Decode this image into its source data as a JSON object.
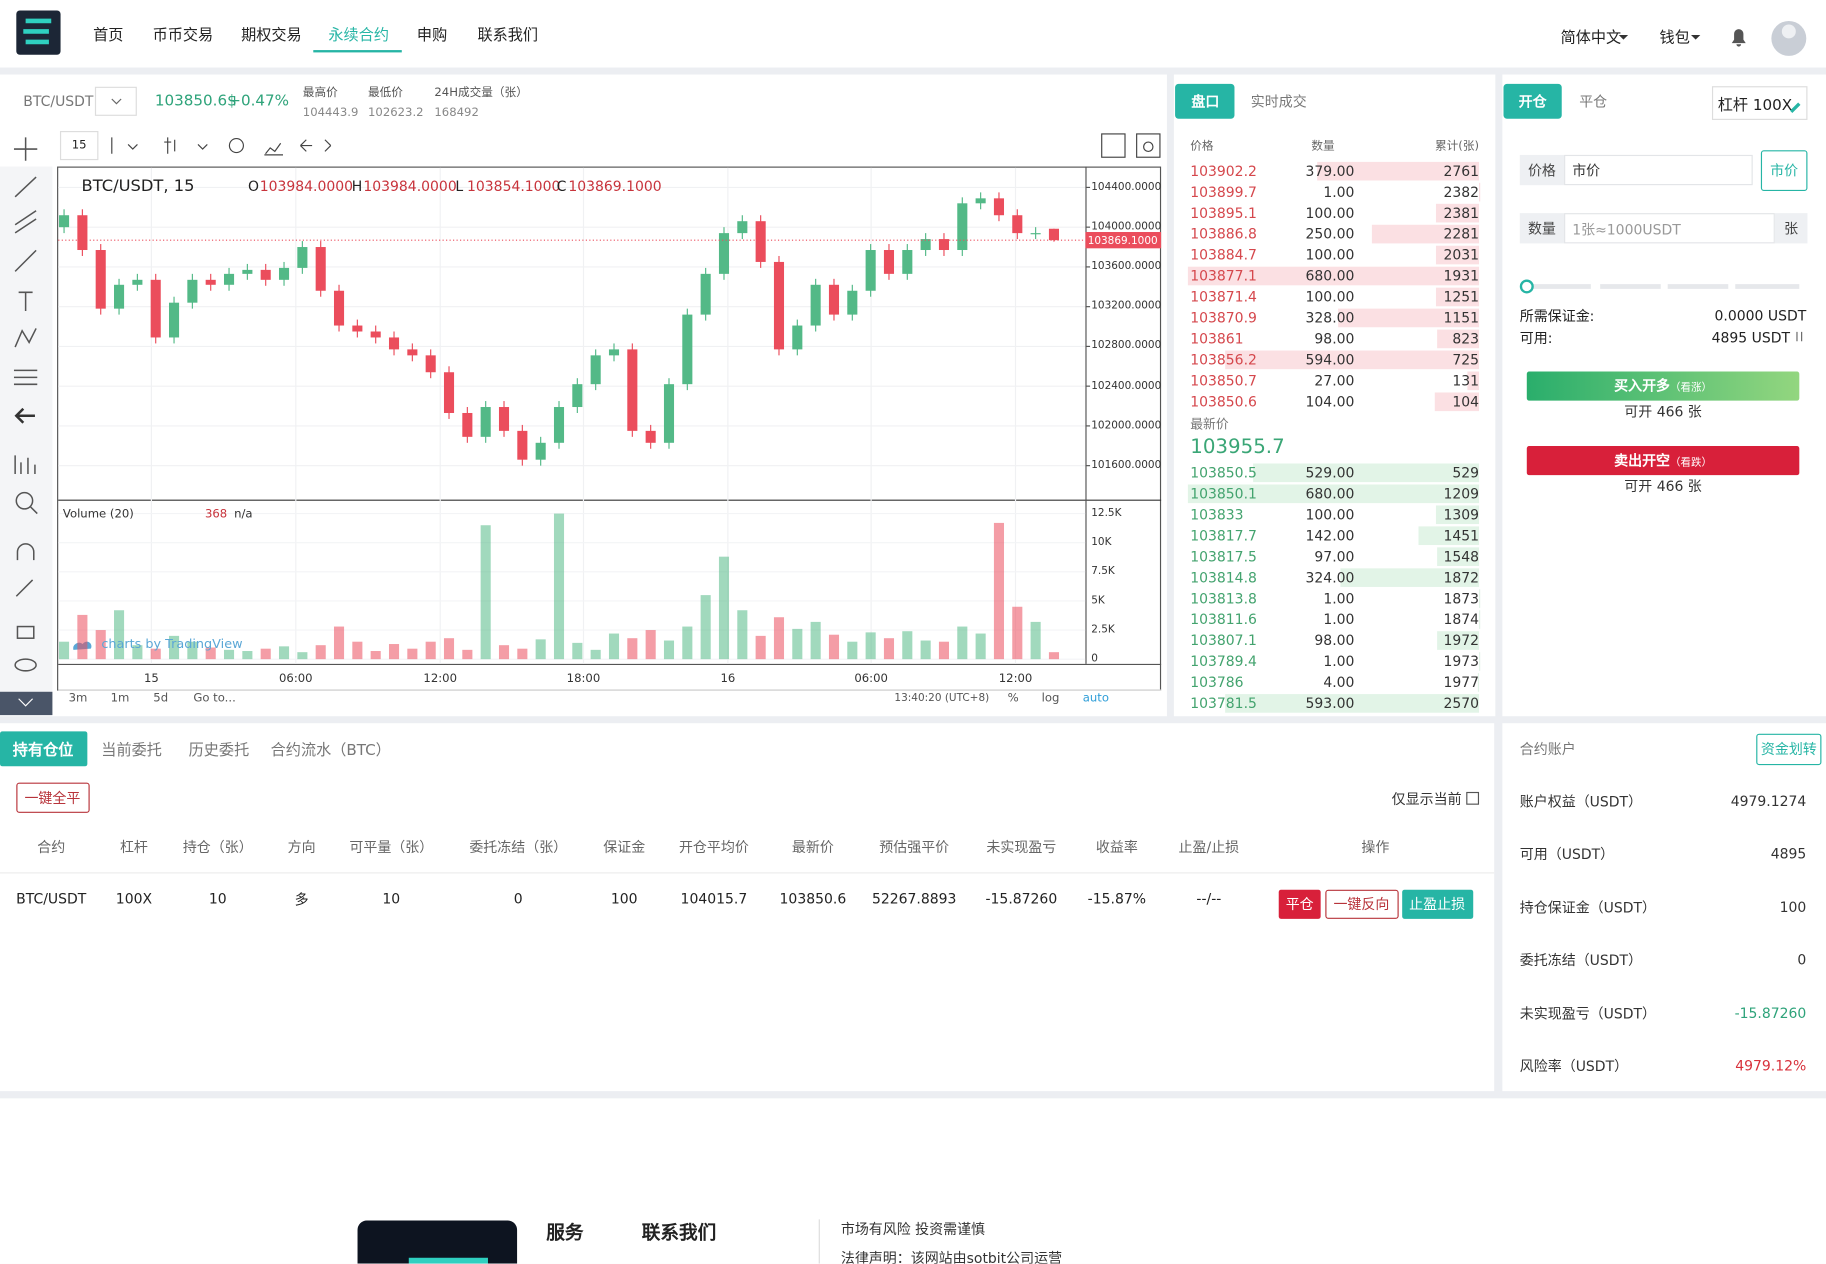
{
  "nav": {
    "items": [
      "首页",
      "币币交易",
      "期权交易",
      "永续合约",
      "申购",
      "联系我们"
    ],
    "active": 3,
    "language": "简体中文",
    "wallet": "钱包"
  },
  "ticker": {
    "pair": "BTC/USDT",
    "price": "103850.6$",
    "change": "+0.47%",
    "stats": [
      {
        "label": "最高价",
        "value": "104443.9"
      },
      {
        "label": "最低价",
        "value": "102623.2"
      },
      {
        "label": "24H成交量（张）",
        "value": "168492"
      }
    ]
  },
  "chart_data": {
    "type": "candlestick",
    "interval": "15",
    "title": "BTC/USDT, 15",
    "legend": [
      {
        "key": "O",
        "value": "103984.0000"
      },
      {
        "key": "H",
        "value": "103984.0000"
      },
      {
        "key": "L",
        "value": "103854.1000"
      },
      {
        "key": "C",
        "value": "103869.1000"
      }
    ],
    "open": [
      104000,
      104120,
      103770,
      103180,
      103420,
      103470,
      102890,
      103240,
      103470,
      103420,
      103530,
      103570,
      103470,
      103590,
      103800,
      103360,
      103010,
      102950,
      102890,
      102770,
      102710,
      102540,
      102130,
      101890,
      102190,
      101950,
      101660,
      101830,
      102190,
      102420,
      102710,
      102770,
      101950,
      101830,
      102420,
      103120,
      103530,
      103940,
      104060,
      103650,
      102770,
      103010,
      103420,
      103120,
      103360,
      103770,
      103530,
      103770,
      103880,
      103770,
      104240,
      104290,
      104120,
      103940,
      103984
    ],
    "high": [
      104180,
      104180,
      103830,
      103480,
      103530,
      103530,
      103300,
      103530,
      103530,
      103590,
      103630,
      103630,
      103650,
      103860,
      103860,
      103420,
      103070,
      103010,
      102950,
      102830,
      102770,
      102600,
      102190,
      102250,
      102250,
      102010,
      101890,
      102250,
      102480,
      102770,
      102830,
      102830,
      102010,
      102480,
      103180,
      103590,
      104000,
      104120,
      104120,
      103710,
      103070,
      103480,
      103480,
      103420,
      103830,
      103830,
      103830,
      103940,
      103940,
      104300,
      104350,
      104350,
      104180,
      104000,
      103984
    ],
    "low": [
      103940,
      103710,
      103120,
      103120,
      103360,
      102830,
      102830,
      103180,
      103360,
      103360,
      103470,
      103410,
      103410,
      103530,
      103300,
      102950,
      102890,
      102830,
      102710,
      102650,
      102480,
      102070,
      101830,
      101830,
      101890,
      101600,
      101600,
      101770,
      102130,
      102360,
      102650,
      101890,
      101770,
      101770,
      102360,
      103060,
      103470,
      103880,
      103590,
      102710,
      102710,
      102950,
      103060,
      103060,
      103300,
      103470,
      103470,
      103710,
      103710,
      103710,
      104180,
      104060,
      103880,
      103880,
      103854.1
    ],
    "close": [
      104120,
      103770,
      103180,
      103420,
      103470,
      102890,
      103240,
      103470,
      103420,
      103530,
      103570,
      103470,
      103590,
      103800,
      103360,
      103010,
      102950,
      102890,
      102770,
      102710,
      102540,
      102130,
      101890,
      102190,
      101950,
      101660,
      101830,
      102190,
      102420,
      102710,
      102770,
      101950,
      101830,
      102420,
      103120,
      103530,
      103940,
      104060,
      103650,
      102770,
      103010,
      103420,
      103120,
      103360,
      103770,
      103530,
      103770,
      103880,
      103770,
      104240,
      104290,
      104120,
      103940,
      103940,
      103869.1
    ],
    "up_color": "#53b987",
    "down_color": "#eb4d5c",
    "ylim": [
      101270,
      104610
    ],
    "yticks": [
      {
        "value": 104400,
        "label": "104400.0000"
      },
      {
        "value": 104000,
        "label": "104000.0000"
      },
      {
        "value": 103600,
        "label": "103600.0000"
      },
      {
        "value": 103200,
        "label": "103200.0000"
      },
      {
        "value": 102800,
        "label": "102800.0000"
      },
      {
        "value": 102400,
        "label": "102400.0000"
      },
      {
        "value": 102000,
        "label": "102000.0000"
      },
      {
        "value": 101600,
        "label": "101600.0000"
      }
    ],
    "last_price": {
      "value": 103869.1,
      "label": "103869.1000"
    },
    "x_tick_labels": [
      "15",
      "06:00",
      "12:00",
      "18:00",
      "16",
      "06:00",
      "12:00"
    ],
    "volume": {
      "title": "Volume (20)",
      "last": "368",
      "ma": "n/a",
      "values": [
        1500,
        3800,
        2500,
        4200,
        1200,
        900,
        2000,
        1500,
        1000,
        800,
        700,
        900,
        1100,
        600,
        1200,
        2800,
        1500,
        700,
        1300,
        900,
        1500,
        1800,
        800,
        11500,
        1200,
        900,
        1700,
        12500,
        1400,
        800,
        2200,
        1800,
        2500,
        1600,
        2800,
        5500,
        8800,
        4200,
        2000,
        3600,
        2600,
        3200,
        2100,
        1500,
        2300,
        1800,
        2400,
        1600,
        1500,
        2800,
        2200,
        11700,
        4500,
        3200,
        600
      ],
      "ylim": [
        0,
        13600
      ],
      "yticks": [
        0,
        {
          "value": 2500,
          "label": "2.5K"
        },
        {
          "value": 5000,
          "label": "5K"
        },
        {
          "value": 7500,
          "label": "7.5K"
        },
        {
          "value": 10000,
          "label": "10K"
        },
        {
          "value": 12500,
          "label": "12.5K"
        }
      ]
    },
    "watermark": "charts by TradingView",
    "ranges": [
      "3m",
      "1m",
      "5d"
    ],
    "goto": "Go to...",
    "clock": "13:40:20 (UTC+8)",
    "options": [
      "%",
      "log",
      "auto"
    ]
  },
  "orderbook": {
    "tabs": [
      "盘口",
      "实时成交"
    ],
    "headers": [
      "价格",
      "数量",
      "累计(张)"
    ],
    "asks": [
      [
        "103902.2",
        "379.00",
        "2761"
      ],
      [
        "103899.7",
        "1.00",
        "2382"
      ],
      [
        "103895.1",
        "100.00",
        "2381"
      ],
      [
        "103886.8",
        "250.00",
        "2281"
      ],
      [
        "103884.7",
        "100.00",
        "2031"
      ],
      [
        "103877.1",
        "680.00",
        "1931"
      ],
      [
        "103871.4",
        "100.00",
        "1251"
      ],
      [
        "103870.9",
        "328.00",
        "1151"
      ],
      [
        "103861",
        "98.00",
        "823"
      ],
      [
        "103856.2",
        "594.00",
        "725"
      ],
      [
        "103850.7",
        "27.00",
        "131"
      ],
      [
        "103850.6",
        "104.00",
        "104"
      ]
    ],
    "latest_label": "最新价",
    "latest": "103955.7",
    "bids": [
      [
        "103850.5",
        "529.00",
        "529"
      ],
      [
        "103850.1",
        "680.00",
        "1209"
      ],
      [
        "103833",
        "100.00",
        "1309"
      ],
      [
        "103817.7",
        "142.00",
        "1451"
      ],
      [
        "103817.5",
        "97.00",
        "1548"
      ],
      [
        "103814.8",
        "324.00",
        "1872"
      ],
      [
        "103813.8",
        "1.00",
        "1873"
      ],
      [
        "103811.6",
        "1.00",
        "1874"
      ],
      [
        "103807.1",
        "98.00",
        "1972"
      ],
      [
        "103789.4",
        "1.00",
        "1973"
      ],
      [
        "103786",
        "4.00",
        "1977"
      ],
      [
        "103781.5",
        "593.00",
        "2570"
      ]
    ]
  },
  "order_form": {
    "tabs": [
      "开仓",
      "平仓"
    ],
    "leverage": "杠杆 100X",
    "price_label": "价格",
    "price_placeholder": "市价",
    "price_button": "市价",
    "qty_label": "数量",
    "qty_placeholder": "1张≈1000USDT",
    "qty_unit": "张",
    "margin_label": "所需保证金:",
    "margin": "0.0000 USDT",
    "available_label": "可用:",
    "available": "4895 USDT",
    "buy": "买入开多",
    "buy_hint": "（看涨）",
    "buy_max": "可开 466 张",
    "sell": "卖出开空",
    "sell_hint": "（看跌）",
    "sell_max": "可开 466 张"
  },
  "positions": {
    "tabs": [
      "持有仓位",
      "当前委托",
      "历史委托",
      "合约流水（BTC）"
    ],
    "close_all": "一键全平",
    "only_current": "仅显示当前",
    "headers": [
      "合约",
      "杠杆",
      "持仓（张）",
      "方向",
      "可平量（张）",
      "委托冻结（张）",
      "保证金",
      "开仓平均价",
      "最新价",
      "预估强平价",
      "未实现盈亏",
      "收益率",
      "止盈/止损",
      "操作"
    ],
    "rows": [
      [
        "BTC/USDT",
        "100X",
        "10",
        "多",
        "10",
        "0",
        "100",
        "104015.7",
        "103850.6",
        "52267.8893",
        "-15.87260",
        "-15.87%",
        "--/--"
      ]
    ],
    "actions": [
      "平仓",
      "一键反向",
      "止盈止损"
    ]
  },
  "account": {
    "title": "合约账户",
    "transfer": "资金划转",
    "rows": [
      {
        "label": "账户权益（USDT）",
        "value": "4979.1274"
      },
      {
        "label": "可用（USDT）",
        "value": "4895"
      },
      {
        "label": "持仓保证金（USDT）",
        "value": "100"
      },
      {
        "label": "委托冻结（USDT）",
        "value": "0"
      },
      {
        "label": "未实现盈亏（USDT）",
        "value": "-15.87260",
        "color": "#2ea37a"
      },
      {
        "label": "风险率（USDT）",
        "value": "4979.12%",
        "color": "#d8323c"
      }
    ]
  },
  "footer": {
    "services": "服务",
    "contact": "联系我们",
    "risk": "市场有风险 投资需谨慎",
    "legal": "法律声明：该网站由sotbit公司运营"
  }
}
